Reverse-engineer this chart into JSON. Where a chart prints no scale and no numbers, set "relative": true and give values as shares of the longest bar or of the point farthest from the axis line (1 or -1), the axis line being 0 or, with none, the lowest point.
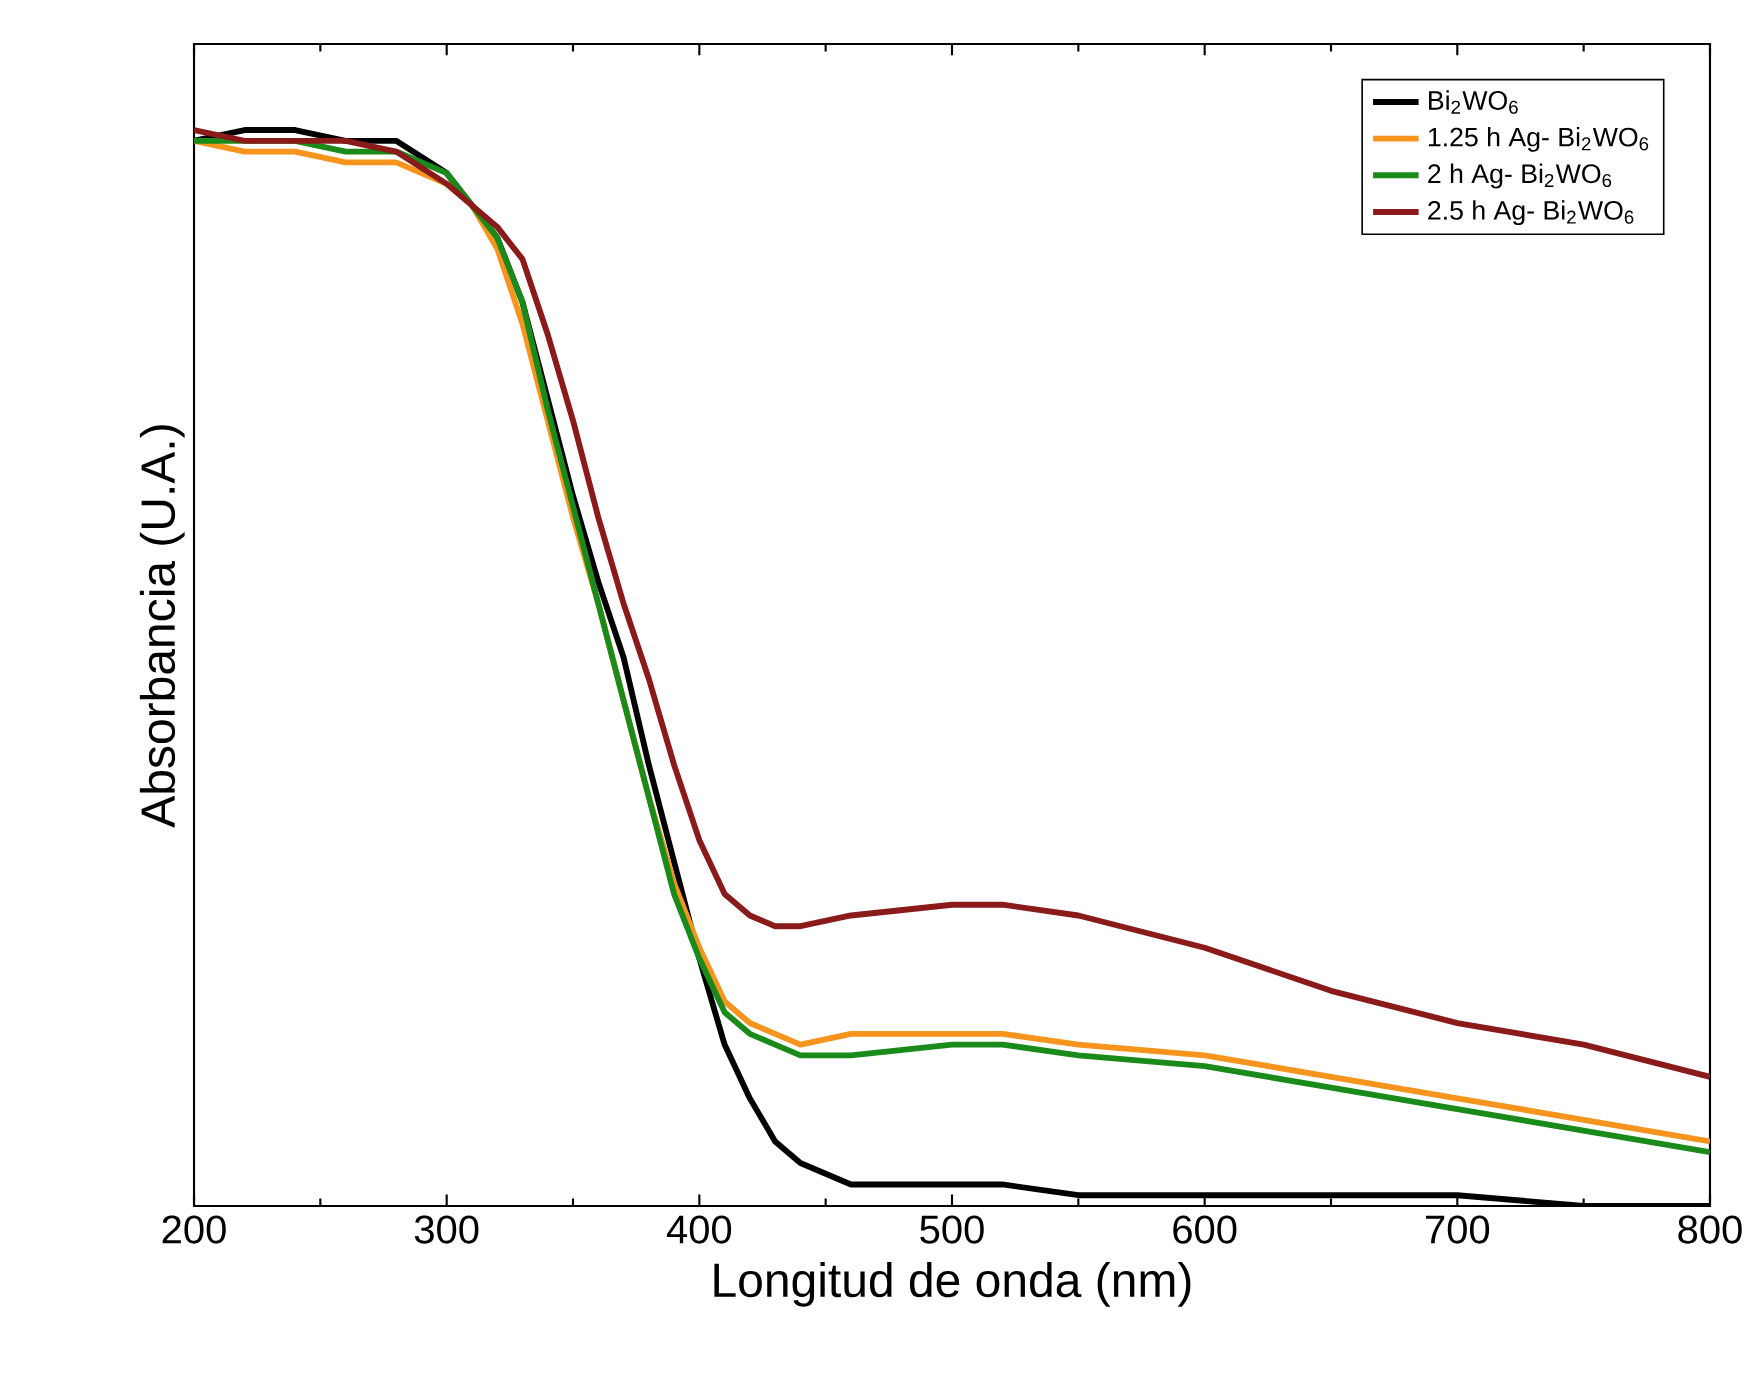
{
  "chart_data": {
    "type": "line",
    "relative": true,
    "xlabel": "Longitud de onda (nm)",
    "ylabel": "Absorbancia (U.A.)",
    "xlim": [
      200,
      800
    ],
    "xticks": [
      200,
      300,
      400,
      500,
      600,
      700,
      800
    ],
    "legend": "top right",
    "line_style": "solid",
    "marker": "none",
    "x": [
      200,
      220,
      240,
      260,
      280,
      300,
      310,
      320,
      330,
      340,
      350,
      360,
      370,
      380,
      390,
      400,
      410,
      420,
      430,
      440,
      460,
      500,
      520,
      550,
      600,
      650,
      700,
      750,
      800
    ],
    "series": [
      {
        "name": "Bi$_{2}$WO$_{6}$",
        "color": "#000000",
        "values": [
          0.99,
          1.0,
          1.0,
          0.99,
          0.99,
          0.96,
          0.93,
          0.9,
          0.84,
          0.75,
          0.66,
          0.58,
          0.51,
          0.41,
          0.32,
          0.23,
          0.15,
          0.1,
          0.06,
          0.04,
          0.02,
          0.02,
          0.02,
          0.01,
          0.01,
          0.01,
          0.01,
          0.0,
          0.0
        ]
      },
      {
        "name": "1.25 h Ag- Bi$_{2}$WO$_{6}$",
        "color": "#f7941d",
        "values": [
          0.99,
          0.98,
          0.98,
          0.97,
          0.97,
          0.95,
          0.93,
          0.89,
          0.82,
          0.73,
          0.64,
          0.56,
          0.47,
          0.38,
          0.3,
          0.24,
          0.19,
          0.17,
          0.16,
          0.15,
          0.16,
          0.16,
          0.16,
          0.15,
          0.14,
          0.12,
          0.1,
          0.08,
          0.06
        ]
      },
      {
        "name": "2 h Ag- Bi$_{2}$WO$_{6}$",
        "color": "#1a8a1a",
        "values": [
          0.99,
          0.99,
          0.99,
          0.98,
          0.98,
          0.96,
          0.93,
          0.9,
          0.84,
          0.74,
          0.65,
          0.56,
          0.47,
          0.38,
          0.29,
          0.23,
          0.18,
          0.16,
          0.15,
          0.14,
          0.14,
          0.15,
          0.15,
          0.14,
          0.13,
          0.11,
          0.09,
          0.07,
          0.05
        ]
      },
      {
        "name": "2.5 h Ag- Bi$_{2}$WO$_{6}$",
        "color": "#8b1a1a",
        "values": [
          1.0,
          0.99,
          0.99,
          0.99,
          0.98,
          0.95,
          0.93,
          0.91,
          0.88,
          0.81,
          0.73,
          0.64,
          0.56,
          0.49,
          0.41,
          0.34,
          0.29,
          0.27,
          0.26,
          0.26,
          0.27,
          0.28,
          0.28,
          0.27,
          0.24,
          0.2,
          0.17,
          0.15,
          0.12
        ]
      }
    ]
  }
}
